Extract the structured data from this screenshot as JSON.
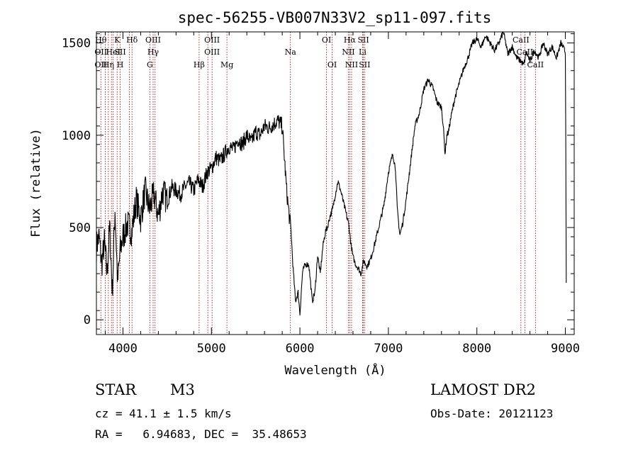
{
  "chart_data": {
    "type": "line",
    "title": "spec-56255-VB007N33V2_sp11-097.fits",
    "xlabel": "Wavelength (Å)",
    "ylabel": "Flux (relative)",
    "xlim": [
      3700,
      9100
    ],
    "ylim": [
      -80,
      1560
    ],
    "xticks": [
      4000,
      5000,
      6000,
      7000,
      8000,
      9000
    ],
    "yticks": [
      0,
      500,
      1000,
      1500
    ],
    "grid": false,
    "series": [
      {
        "color": "#000000",
        "x": [
          3700,
          3730,
          3760,
          3790,
          3820,
          3850,
          3880,
          3910,
          3940,
          3970,
          4000,
          4050,
          4100,
          4150,
          4200,
          4250,
          4300,
          4350,
          4400,
          4450,
          4500,
          4550,
          4600,
          4650,
          4700,
          4750,
          4800,
          4850,
          4900,
          4950,
          5000,
          5050,
          5100,
          5150,
          5200,
          5250,
          5300,
          5350,
          5400,
          5450,
          5500,
          5550,
          5600,
          5650,
          5700,
          5750,
          5800,
          5850,
          5880,
          5900,
          5920,
          5950,
          5980,
          6000,
          6030,
          6060,
          6100,
          6140,
          6170,
          6200,
          6230,
          6260,
          6290,
          6310,
          6340,
          6370,
          6400,
          6430,
          6460,
          6500,
          6530,
          6550,
          6580,
          6600,
          6630,
          6660,
          6690,
          6720,
          6760,
          6800,
          6850,
          6900,
          6950,
          7000,
          7050,
          7080,
          7100,
          7130,
          7160,
          7200,
          7250,
          7300,
          7350,
          7400,
          7450,
          7500,
          7550,
          7600,
          7620,
          7640,
          7660,
          7680,
          7700,
          7750,
          7800,
          7850,
          7900,
          7950,
          8000,
          8050,
          8100,
          8150,
          8200,
          8250,
          8300,
          8350,
          8400,
          8450,
          8500,
          8530,
          8560,
          8600,
          8650,
          8700,
          8750,
          8800,
          8850,
          8900,
          8950,
          9000,
          9005,
          9010
        ],
        "y": [
          400,
          450,
          300,
          420,
          250,
          500,
          150,
          600,
          200,
          380,
          450,
          520,
          480,
          650,
          550,
          700,
          600,
          680,
          560,
          700,
          640,
          720,
          700,
          680,
          720,
          740,
          700,
          760,
          720,
          800,
          820,
          880,
          860,
          900,
          940,
          920,
          980,
          950,
          1000,
          960,
          1020,
          1000,
          1050,
          1040,
          1060,
          1080,
          1050,
          700,
          560,
          480,
          300,
          100,
          150,
          30,
          260,
          300,
          300,
          100,
          150,
          350,
          250,
          400,
          480,
          500,
          560,
          600,
          680,
          750,
          700,
          620,
          560,
          520,
          400,
          340,
          300,
          280,
          250,
          320,
          290,
          330,
          420,
          520,
          620,
          800,
          900,
          820,
          600,
          460,
          520,
          650,
          850,
          1050,
          1120,
          1250,
          1300,
          1260,
          1180,
          1150,
          1050,
          900,
          1000,
          1020,
          1080,
          1200,
          1280,
          1360,
          1420,
          1500,
          1520,
          1480,
          1540,
          1500,
          1460,
          1500,
          1560,
          1440,
          1480,
          1420,
          1400,
          1380,
          1450,
          1400,
          1460,
          1420,
          1500,
          1440,
          1480,
          1420,
          1500,
          1450,
          1000,
          200
        ]
      }
    ],
    "lines": [
      {
        "x": 3750,
        "labels": [
          "Hθ",
          "OII",
          "OII"
        ]
      },
      {
        "x": 3800,
        "labels": [
          "",
          "",
          ""
        ]
      },
      {
        "x": 3835,
        "labels": [
          "",
          "",
          "Hη"
        ]
      },
      {
        "x": 3870,
        "labels": [
          "",
          "",
          ""
        ]
      },
      {
        "x": 3890,
        "labels": [
          "",
          "HeI",
          ""
        ]
      },
      {
        "x": 3934,
        "labels": [
          "K",
          "",
          ""
        ]
      },
      {
        "x": 3969,
        "labels": [
          "",
          "SII",
          "H"
        ]
      },
      {
        "x": 4072,
        "labels": [
          "",
          "",
          ""
        ]
      },
      {
        "x": 4102,
        "labels": [
          "Hδ",
          "",
          ""
        ]
      },
      {
        "x": 4304,
        "labels": [
          "",
          "",
          "G"
        ]
      },
      {
        "x": 4341,
        "labels": [
          "OIII",
          "Hγ",
          ""
        ]
      },
      {
        "x": 4363,
        "labels": [
          "",
          "",
          ""
        ]
      },
      {
        "x": 4861,
        "labels": [
          "",
          "",
          "Hβ"
        ]
      },
      {
        "x": 4959,
        "labels": [
          "",
          "",
          ""
        ]
      },
      {
        "x": 5007,
        "labels": [
          "OIII",
          "OIII",
          ""
        ]
      },
      {
        "x": 5175,
        "labels": [
          "",
          "",
          "Mg"
        ]
      },
      {
        "x": 5893,
        "labels": [
          "",
          "Na",
          ""
        ]
      },
      {
        "x": 6300,
        "labels": [
          "OI",
          "",
          ""
        ]
      },
      {
        "x": 6364,
        "labels": [
          "",
          "",
          "OI"
        ]
      },
      {
        "x": 6548,
        "labels": [
          "",
          "NII",
          ""
        ]
      },
      {
        "x": 6563,
        "labels": [
          "Hα",
          "",
          ""
        ]
      },
      {
        "x": 6584,
        "labels": [
          "",
          "",
          "NII"
        ]
      },
      {
        "x": 6708,
        "labels": [
          "",
          "Li",
          ""
        ]
      },
      {
        "x": 6717,
        "labels": [
          "SII",
          "",
          ""
        ]
      },
      {
        "x": 6731,
        "labels": [
          "",
          "",
          "SII"
        ]
      },
      {
        "x": 8498,
        "labels": [
          "CaII",
          "",
          ""
        ]
      },
      {
        "x": 8542,
        "labels": [
          "",
          "CaII",
          ""
        ]
      },
      {
        "x": 8662,
        "labels": [
          "",
          "",
          "CaII"
        ]
      }
    ]
  },
  "info": {
    "object_type": "STAR",
    "subclass": "M3",
    "survey": "LAMOST DR2",
    "redshift_text": "cz = 41.1 ± 1.5 km/s",
    "obs_date_text": "Obs-Date: 20121123",
    "coords_text": "RA =   6.94683, DEC =  35.48653"
  }
}
